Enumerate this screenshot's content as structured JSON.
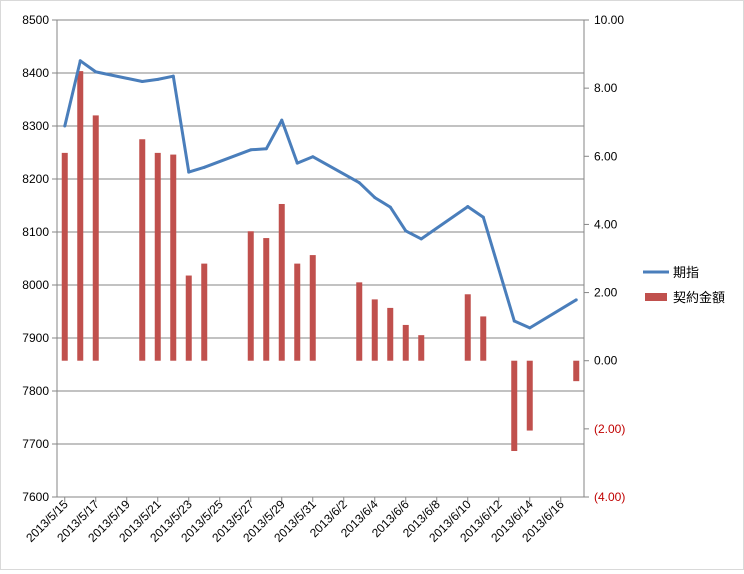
{
  "chart_data": {
    "type": "bar+line",
    "dates": [
      "2013/5/15",
      "2013/5/16",
      "2013/5/17",
      "2013/5/18",
      "2013/5/19",
      "2013/5/20",
      "2013/5/21",
      "2013/5/22",
      "2013/5/23",
      "2013/5/24",
      "2013/5/25",
      "2013/5/26",
      "2013/5/27",
      "2013/5/28",
      "2013/5/29",
      "2013/5/30",
      "2013/5/31",
      "2013/6/1",
      "2013/6/2",
      "2013/6/3",
      "2013/6/4",
      "2013/6/5",
      "2013/6/6",
      "2013/6/7",
      "2013/6/8",
      "2013/6/9",
      "2013/6/10",
      "2013/6/11",
      "2013/6/12",
      "2013/6/13",
      "2013/6/14",
      "2013/6/15",
      "2013/6/16",
      "2013/6/17"
    ],
    "x_tick_labels": [
      "2013/5/15",
      "2013/5/17",
      "2013/5/19",
      "2013/5/21",
      "2013/5/23",
      "2013/5/25",
      "2013/5/27",
      "2013/5/29",
      "2013/5/31",
      "2013/6/2",
      "2013/6/4",
      "2013/6/6",
      "2013/6/8",
      "2013/6/10",
      "2013/6/12",
      "2013/6/14",
      "2013/6/16"
    ],
    "series": [
      {
        "name": "期指",
        "kind": "line",
        "axis": "left",
        "color": "#4a7ebb",
        "points": [
          {
            "date": "2013/5/15",
            "value": 8300
          },
          {
            "date": "2013/5/16",
            "value": 8423
          },
          {
            "date": "2013/5/17",
            "value": 8402
          },
          {
            "date": "2013/5/20",
            "value": 8384
          },
          {
            "date": "2013/5/21",
            "value": 8388
          },
          {
            "date": "2013/5/22",
            "value": 8394
          },
          {
            "date": "2013/5/23",
            "value": 8213
          },
          {
            "date": "2013/5/24",
            "value": 8222
          },
          {
            "date": "2013/5/27",
            "value": 8255
          },
          {
            "date": "2013/5/28",
            "value": 8257
          },
          {
            "date": "2013/5/29",
            "value": 8311
          },
          {
            "date": "2013/5/30",
            "value": 8230
          },
          {
            "date": "2013/5/31",
            "value": 8242
          },
          {
            "date": "2013/6/3",
            "value": 8193
          },
          {
            "date": "2013/6/4",
            "value": 8165
          },
          {
            "date": "2013/6/5",
            "value": 8147
          },
          {
            "date": "2013/6/6",
            "value": 8102
          },
          {
            "date": "2013/6/7",
            "value": 8087
          },
          {
            "date": "2013/6/10",
            "value": 8148
          },
          {
            "date": "2013/6/11",
            "value": 8128
          },
          {
            "date": "2013/6/13",
            "value": 7932
          },
          {
            "date": "2013/6/14",
            "value": 7919
          },
          {
            "date": "2013/6/17",
            "value": 7972
          }
        ]
      },
      {
        "name": "契約金額",
        "kind": "bar",
        "axis": "right",
        "color": "#c0504d",
        "points": [
          {
            "date": "2013/5/15",
            "value": 6.1
          },
          {
            "date": "2013/5/16",
            "value": 8.5
          },
          {
            "date": "2013/5/17",
            "value": 7.2
          },
          {
            "date": "2013/5/20",
            "value": 6.5
          },
          {
            "date": "2013/5/21",
            "value": 6.1
          },
          {
            "date": "2013/5/22",
            "value": 6.05
          },
          {
            "date": "2013/5/23",
            "value": 2.5
          },
          {
            "date": "2013/5/24",
            "value": 2.85
          },
          {
            "date": "2013/5/27",
            "value": 3.8
          },
          {
            "date": "2013/5/28",
            "value": 3.6
          },
          {
            "date": "2013/5/29",
            "value": 4.6
          },
          {
            "date": "2013/5/30",
            "value": 2.85
          },
          {
            "date": "2013/5/31",
            "value": 3.1
          },
          {
            "date": "2013/6/3",
            "value": 2.3
          },
          {
            "date": "2013/6/4",
            "value": 1.8
          },
          {
            "date": "2013/6/5",
            "value": 1.55
          },
          {
            "date": "2013/6/6",
            "value": 1.05
          },
          {
            "date": "2013/6/7",
            "value": 0.75
          },
          {
            "date": "2013/6/10",
            "value": 1.95
          },
          {
            "date": "2013/6/11",
            "value": 1.3
          },
          {
            "date": "2013/6/13",
            "value": -2.65
          },
          {
            "date": "2013/6/14",
            "value": -2.05
          },
          {
            "date": "2013/6/17",
            "value": -0.6
          }
        ]
      }
    ],
    "left_axis": {
      "ylim": [
        7600,
        8500
      ],
      "ticks": [
        8500,
        8400,
        8300,
        8200,
        8100,
        8000,
        7900,
        7800,
        7700,
        7600
      ],
      "tick_labels": [
        "8500",
        "8400",
        "8300",
        "8200",
        "8100",
        "8000",
        "7900",
        "7800",
        "7700",
        "7600"
      ]
    },
    "right_axis": {
      "ylim": [
        -4,
        10
      ],
      "ticks": [
        10,
        8,
        6,
        4,
        2,
        0,
        -2,
        -4
      ],
      "tick_labels": [
        "10.00",
        "8.00",
        "6.00",
        "4.00",
        "2.00",
        "0.00",
        "(2.00)",
        "(4.00)"
      ],
      "negative_color": "#c00000"
    },
    "grid": "horizontal",
    "legend": "right",
    "title": "",
    "xlabel": "",
    "ylabel": ""
  }
}
